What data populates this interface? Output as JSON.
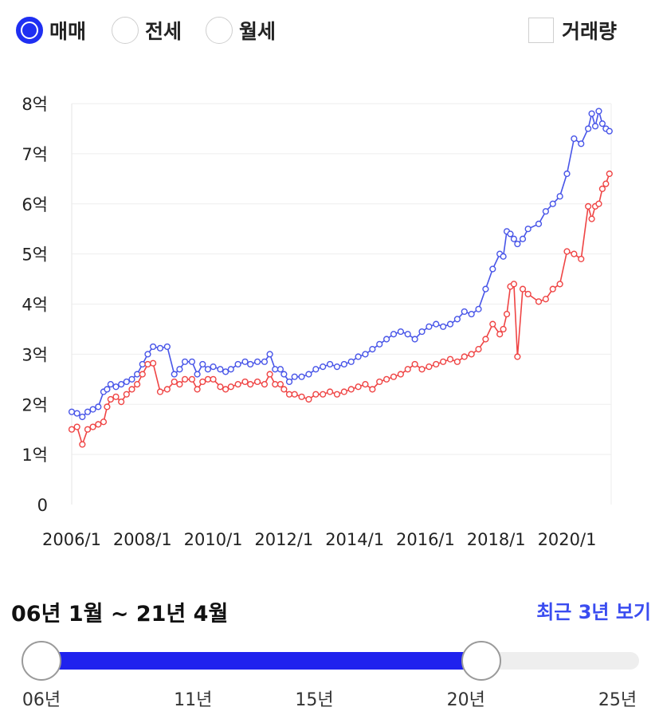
{
  "tabs": {
    "options": [
      "매매",
      "전세",
      "월세"
    ],
    "selected": "매매",
    "volume_label": "거래량"
  },
  "colors": {
    "sale": "#4855e8",
    "lowest": "#ef4444",
    "accent": "#1f2ff2"
  },
  "chart_data": {
    "type": "line",
    "title": "",
    "xlabel": "",
    "ylabel": "",
    "ylim": [
      0,
      8
    ],
    "xlim": [
      2006.0,
      2021.25
    ],
    "y_ticks": [
      "0",
      "1억",
      "2억",
      "3억",
      "4억",
      "5억",
      "6억",
      "7억",
      "8억"
    ],
    "x_ticks": [
      {
        "x": 2006.0,
        "label": "2006/1"
      },
      {
        "x": 2008.0,
        "label": "2008/1"
      },
      {
        "x": 2010.0,
        "label": "2010/1"
      },
      {
        "x": 2012.0,
        "label": "2012/1"
      },
      {
        "x": 2014.0,
        "label": "2014/1"
      },
      {
        "x": 2016.0,
        "label": "2016/1"
      },
      {
        "x": 2018.0,
        "label": "2018/1"
      },
      {
        "x": 2020.0,
        "label": "2020/1"
      }
    ],
    "grid": true,
    "series": [
      {
        "color": "#4855e8",
        "x": [
          2006.0,
          2006.15,
          2006.3,
          2006.45,
          2006.6,
          2006.75,
          2006.9,
          2007.0,
          2007.1,
          2007.25,
          2007.4,
          2007.55,
          2007.7,
          2007.85,
          2008.0,
          2008.15,
          2008.3,
          2008.5,
          2008.7,
          2008.9,
          2009.05,
          2009.2,
          2009.4,
          2009.55,
          2009.7,
          2009.85,
          2010.0,
          2010.2,
          2010.35,
          2010.5,
          2010.7,
          2010.9,
          2011.05,
          2011.25,
          2011.45,
          2011.6,
          2011.75,
          2011.9,
          2012.0,
          2012.15,
          2012.3,
          2012.5,
          2012.7,
          2012.9,
          2013.1,
          2013.3,
          2013.5,
          2013.7,
          2013.9,
          2014.1,
          2014.3,
          2014.5,
          2014.7,
          2014.9,
          2015.1,
          2015.3,
          2015.5,
          2015.7,
          2015.9,
          2016.1,
          2016.3,
          2016.5,
          2016.7,
          2016.9,
          2017.1,
          2017.3,
          2017.5,
          2017.7,
          2017.9,
          2018.1,
          2018.2,
          2018.3,
          2018.4,
          2018.5,
          2018.6,
          2018.75,
          2018.9,
          2019.2,
          2019.4,
          2019.6,
          2019.8,
          2020.0,
          2020.2,
          2020.4,
          2020.6,
          2020.7,
          2020.8,
          2020.9,
          2021.0,
          2021.1,
          2021.2
        ],
        "y": [
          1.85,
          1.82,
          1.75,
          1.85,
          1.9,
          1.95,
          2.25,
          2.3,
          2.4,
          2.35,
          2.4,
          2.45,
          2.5,
          2.6,
          2.8,
          3.0,
          3.15,
          3.12,
          3.15,
          2.6,
          2.7,
          2.85,
          2.85,
          2.6,
          2.8,
          2.7,
          2.75,
          2.7,
          2.65,
          2.7,
          2.8,
          2.85,
          2.8,
          2.85,
          2.85,
          3.0,
          2.7,
          2.7,
          2.6,
          2.45,
          2.55,
          2.55,
          2.6,
          2.7,
          2.75,
          2.8,
          2.75,
          2.8,
          2.85,
          2.95,
          3.0,
          3.1,
          3.2,
          3.3,
          3.4,
          3.45,
          3.4,
          3.3,
          3.45,
          3.55,
          3.6,
          3.55,
          3.6,
          3.7,
          3.85,
          3.8,
          3.9,
          4.3,
          4.7,
          5.0,
          4.95,
          5.45,
          5.4,
          5.3,
          5.2,
          5.3,
          5.5,
          5.6,
          5.85,
          6.0,
          6.15,
          6.6,
          7.3,
          7.2,
          7.5,
          7.8,
          7.55,
          7.85,
          7.6,
          7.5,
          7.45
        ]
      },
      {
        "color": "#ef4444",
        "x": [
          2006.0,
          2006.15,
          2006.3,
          2006.45,
          2006.6,
          2006.75,
          2006.9,
          2007.0,
          2007.1,
          2007.25,
          2007.4,
          2007.55,
          2007.7,
          2007.85,
          2008.0,
          2008.15,
          2008.3,
          2008.5,
          2008.7,
          2008.9,
          2009.05,
          2009.2,
          2009.4,
          2009.55,
          2009.7,
          2009.85,
          2010.0,
          2010.2,
          2010.35,
          2010.5,
          2010.7,
          2010.9,
          2011.05,
          2011.25,
          2011.45,
          2011.6,
          2011.75,
          2011.9,
          2012.0,
          2012.15,
          2012.3,
          2012.5,
          2012.7,
          2012.9,
          2013.1,
          2013.3,
          2013.5,
          2013.7,
          2013.9,
          2014.1,
          2014.3,
          2014.5,
          2014.7,
          2014.9,
          2015.1,
          2015.3,
          2015.5,
          2015.7,
          2015.9,
          2016.1,
          2016.3,
          2016.5,
          2016.7,
          2016.9,
          2017.1,
          2017.3,
          2017.5,
          2017.7,
          2017.9,
          2018.1,
          2018.2,
          2018.3,
          2018.4,
          2018.5,
          2018.6,
          2018.75,
          2018.9,
          2019.2,
          2019.4,
          2019.6,
          2019.8,
          2020.0,
          2020.2,
          2020.4,
          2020.6,
          2020.7,
          2020.8,
          2020.9,
          2021.0,
          2021.1,
          2021.2
        ],
        "y": [
          1.5,
          1.55,
          1.2,
          1.5,
          1.55,
          1.6,
          1.65,
          1.95,
          2.1,
          2.15,
          2.05,
          2.2,
          2.3,
          2.4,
          2.6,
          2.8,
          2.82,
          2.25,
          2.3,
          2.45,
          2.4,
          2.5,
          2.5,
          2.3,
          2.45,
          2.5,
          2.5,
          2.35,
          2.3,
          2.35,
          2.4,
          2.45,
          2.4,
          2.45,
          2.4,
          2.6,
          2.4,
          2.4,
          2.3,
          2.2,
          2.2,
          2.15,
          2.1,
          2.2,
          2.2,
          2.25,
          2.2,
          2.25,
          2.3,
          2.35,
          2.4,
          2.3,
          2.45,
          2.5,
          2.55,
          2.6,
          2.7,
          2.8,
          2.7,
          2.75,
          2.8,
          2.85,
          2.9,
          2.85,
          2.95,
          3.0,
          3.1,
          3.3,
          3.6,
          3.4,
          3.5,
          3.8,
          4.35,
          4.4,
          2.95,
          4.3,
          4.2,
          4.05,
          4.1,
          4.3,
          4.4,
          5.05,
          5.0,
          4.9,
          5.95,
          5.7,
          5.95,
          6.0,
          6.3,
          6.4,
          6.6
        ]
      }
    ]
  },
  "range": {
    "title": "06년 1월 ~ 21년 4월",
    "recent_link": "최근 3년 보기",
    "ticks": [
      {
        "label": "06년",
        "pos": 0.0
      },
      {
        "label": "11년",
        "pos": 0.2632
      },
      {
        "label": "15년",
        "pos": 0.4737
      },
      {
        "label": "20년",
        "pos": 0.7368
      },
      {
        "label": "25년",
        "pos": 1.0
      }
    ],
    "start": "06년",
    "end": "20년"
  }
}
